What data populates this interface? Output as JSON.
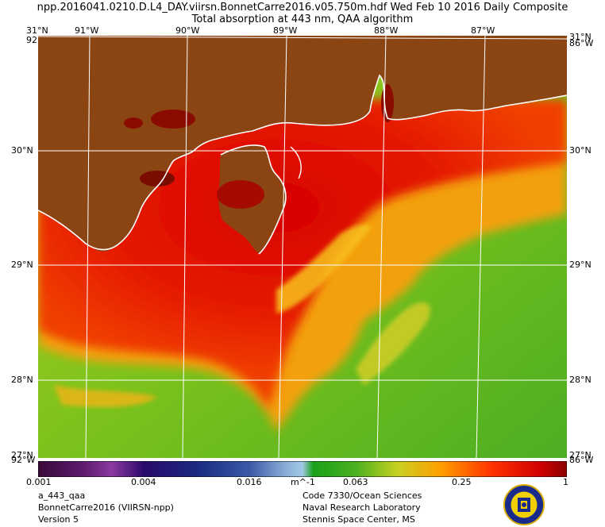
{
  "header": {
    "line1": "npp.2016041.0210.D.L4_DAY.viirsn.BonnetCarre2016.v05.750m.hdf   Wed Feb 10 2016 Daily Composite",
    "line2": "Total absorption at 443 nm, QAA algorithm"
  },
  "map": {
    "lat_labels": [
      "31°N",
      "30°N",
      "29°N",
      "28°N",
      "27°N"
    ],
    "lon_labels": [
      "91°W",
      "90°W",
      "89°W",
      "88°W",
      "87°W"
    ],
    "corner_labels": [
      "86°W",
      "92°W"
    ],
    "colors": {
      "land": "#8b4513",
      "coast": "#ffffff",
      "grid": "#ffffff",
      "high": "#d20000",
      "mid": "#ff6a00",
      "low": "#6fbe1f"
    }
  },
  "colorbar": {
    "tick_labels": [
      "0.001",
      "0.004",
      "0.016",
      "0.063",
      "0.25",
      "1"
    ],
    "unit": "m^-1"
  },
  "footer": {
    "left": [
      "a_443_qaa",
      "BonnetCarre2016 (VIIRSN-npp)",
      "Version 5"
    ],
    "right": [
      "Code 7330/Ocean Sciences",
      "Naval Research Laboratory",
      "Stennis Space Center, MS"
    ]
  },
  "seal_icon": "nrl-seal-icon"
}
